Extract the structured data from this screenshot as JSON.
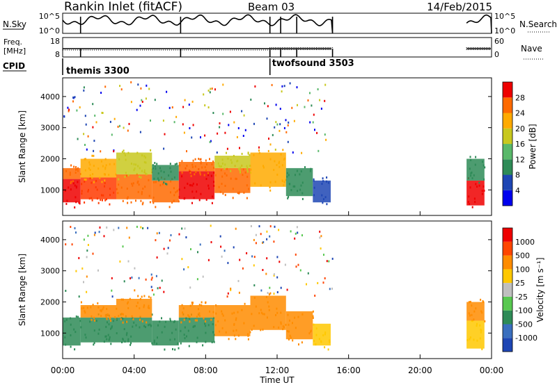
{
  "header": {
    "station": "Rankin Inlet (fitACF)",
    "beam": "Beam 03",
    "date": "14/Feb/2015"
  },
  "nsky_panel": {
    "left_label": "N.Sky",
    "right_label": "N.Search",
    "left_ticks": [
      "10^5",
      "10^0"
    ],
    "right_ticks": [
      "10^5",
      "10^0"
    ]
  },
  "freq_panel": {
    "left_label_line1": "Freq.",
    "left_label_line2": "[MHz]",
    "right_label": "Nave",
    "left_ticks": [
      "18",
      "8"
    ],
    "right_ticks": [
      "60",
      "0"
    ]
  },
  "cpid": {
    "label": "CPID",
    "segments": [
      {
        "name": "themis 3300",
        "start_hour": 0.0,
        "end_hour": 11.6
      },
      {
        "name": "twofsound 3503",
        "start_hour": 11.6,
        "end_hour": 24.0
      }
    ]
  },
  "time_axis": {
    "label": "Time UT",
    "ticks": [
      "00:00",
      "04:00",
      "08:00",
      "12:00",
      "16:00",
      "20:00",
      "00:00"
    ]
  },
  "chart_data": [
    {
      "type": "heatmap",
      "name": "power",
      "xlabel": "Time UT",
      "ylabel": "Slant Range [km]",
      "x_unit": "hours UT",
      "xlim": [
        0,
        24
      ],
      "ylim": [
        180,
        4600
      ],
      "yticks": [
        "1000",
        "2000",
        "3000",
        "4000"
      ],
      "colorbar_label": "Power [dB]",
      "colorbar_ticks": [
        "4",
        "8",
        "12",
        "16",
        "20",
        "24",
        "28"
      ],
      "colorbar_colors": [
        "#0000ee",
        "#1e46b4",
        "#2e8b57",
        "#59b86a",
        "#c8c81e",
        "#ffaa00",
        "#ff6a00",
        "#ee0000"
      ],
      "bands": [
        {
          "start": 0.0,
          "end": 1.0,
          "range_low": 600,
          "range_high": 1350,
          "color": "#ee0000"
        },
        {
          "start": 0.0,
          "end": 1.0,
          "range_low": 1350,
          "range_high": 1700,
          "color": "#ff6a00"
        },
        {
          "start": 1.0,
          "end": 3.0,
          "range_low": 700,
          "range_high": 1400,
          "color": "#ff3a00"
        },
        {
          "start": 1.0,
          "end": 3.0,
          "range_low": 1400,
          "range_high": 2000,
          "color": "#ffaa00"
        },
        {
          "start": 3.0,
          "end": 5.0,
          "range_low": 700,
          "range_high": 1500,
          "color": "#ff6a00"
        },
        {
          "start": 3.0,
          "end": 5.0,
          "range_low": 1500,
          "range_high": 2200,
          "color": "#c8c81e"
        },
        {
          "start": 5.0,
          "end": 6.5,
          "range_low": 600,
          "range_high": 1300,
          "color": "#ff6a00"
        },
        {
          "start": 5.0,
          "end": 6.5,
          "range_low": 1300,
          "range_high": 1800,
          "color": "#2e8b57"
        },
        {
          "start": 6.5,
          "end": 8.5,
          "range_low": 700,
          "range_high": 1600,
          "color": "#ee0000"
        },
        {
          "start": 6.5,
          "end": 8.5,
          "range_low": 1600,
          "range_high": 1900,
          "color": "#ff6a00"
        },
        {
          "start": 8.5,
          "end": 10.5,
          "range_low": 900,
          "range_high": 1700,
          "color": "#ff6a00"
        },
        {
          "start": 8.5,
          "end": 10.5,
          "range_low": 1700,
          "range_high": 2100,
          "color": "#c8c81e"
        },
        {
          "start": 10.5,
          "end": 12.5,
          "range_low": 1100,
          "range_high": 2200,
          "color": "#ffaa00"
        },
        {
          "start": 12.5,
          "end": 14.0,
          "range_low": 800,
          "range_high": 1700,
          "color": "#2e8b57"
        },
        {
          "start": 14.0,
          "end": 15.0,
          "range_low": 600,
          "range_high": 1300,
          "color": "#1e46b4"
        },
        {
          "start": 22.6,
          "end": 23.6,
          "range_low": 500,
          "range_high": 1300,
          "color": "#ee0000"
        },
        {
          "start": 22.6,
          "end": 23.6,
          "range_low": 1300,
          "range_high": 2000,
          "color": "#2e8b57"
        }
      ]
    },
    {
      "type": "heatmap",
      "name": "velocity",
      "xlabel": "Time UT",
      "ylabel": "Slant Range [km]",
      "x_unit": "hours UT",
      "xlim": [
        0,
        24
      ],
      "ylim": [
        180,
        4600
      ],
      "yticks": [
        "1000",
        "2000",
        "3000",
        "4000"
      ],
      "colorbar_label": "Velocity [m s⁻¹]",
      "colorbar_ticks": [
        "1000",
        "500",
        "100",
        "25",
        "-25",
        "-100",
        "-500",
        "-1000"
      ],
      "colorbar_colors": [
        "#1e46b4",
        "#3a6fbe",
        "#2e8b57",
        "#58c850",
        "#bfbfbf",
        "#ffc800",
        "#ff8c00",
        "#ff4600",
        "#ee0000"
      ],
      "bands": [
        {
          "start": 0.0,
          "end": 1.0,
          "range_low": 600,
          "range_high": 1500,
          "color": "#2e8b57"
        },
        {
          "start": 1.0,
          "end": 3.0,
          "range_low": 700,
          "range_high": 1500,
          "color": "#2e8b57"
        },
        {
          "start": 1.0,
          "end": 3.0,
          "range_low": 1500,
          "range_high": 1900,
          "color": "#ff8c00"
        },
        {
          "start": 3.0,
          "end": 5.0,
          "range_low": 700,
          "range_high": 1500,
          "color": "#2e8b57"
        },
        {
          "start": 3.0,
          "end": 5.0,
          "range_low": 1500,
          "range_high": 2100,
          "color": "#ff8c00"
        },
        {
          "start": 5.0,
          "end": 6.5,
          "range_low": 600,
          "range_high": 1400,
          "color": "#2e8b57"
        },
        {
          "start": 6.5,
          "end": 8.5,
          "range_low": 700,
          "range_high": 1500,
          "color": "#2e8b57"
        },
        {
          "start": 6.5,
          "end": 8.5,
          "range_low": 1500,
          "range_high": 1900,
          "color": "#ff8c00"
        },
        {
          "start": 8.5,
          "end": 10.5,
          "range_low": 900,
          "range_high": 1900,
          "color": "#ff8c00"
        },
        {
          "start": 10.5,
          "end": 12.5,
          "range_low": 1100,
          "range_high": 2200,
          "color": "#ff8c00"
        },
        {
          "start": 12.5,
          "end": 14.0,
          "range_low": 800,
          "range_high": 1700,
          "color": "#ff8c00"
        },
        {
          "start": 14.0,
          "end": 15.0,
          "range_low": 600,
          "range_high": 1300,
          "color": "#ffc800"
        },
        {
          "start": 22.6,
          "end": 23.6,
          "range_low": 500,
          "range_high": 1400,
          "color": "#ffc800"
        },
        {
          "start": 22.6,
          "end": 23.6,
          "range_low": 1400,
          "range_high": 2000,
          "color": "#ff8c00"
        }
      ]
    }
  ]
}
